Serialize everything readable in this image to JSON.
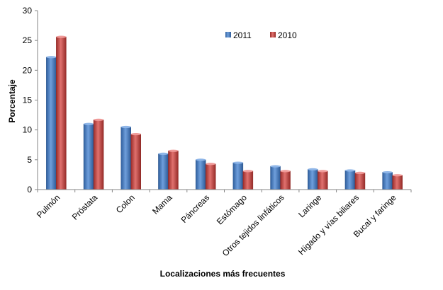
{
  "chart_data": {
    "type": "bar",
    "title": "",
    "xlabel": "Localizaciones  más frecuentes",
    "ylabel": "Porcentaje",
    "ylim": [
      0,
      30
    ],
    "yticks": [
      0,
      5,
      10,
      15,
      20,
      25,
      30
    ],
    "grid": false,
    "legend_position": "top-right",
    "categories": [
      "Pulmón",
      "Próstata",
      "Colon",
      "Mama",
      "Páncreas",
      "Estómago",
      "Otros tejidos linfáticos",
      "Laringe",
      "Hígado y vías biliares",
      "Bucal y faringe"
    ],
    "series": [
      {
        "name": "2011",
        "color": "#4a7ebb",
        "values": [
          22.2,
          11.0,
          10.5,
          6.0,
          5.0,
          4.5,
          3.9,
          3.4,
          3.2,
          2.9
        ]
      },
      {
        "name": "2010",
        "color": "#c0504d",
        "values": [
          25.6,
          11.7,
          9.3,
          6.5,
          4.3,
          3.1,
          3.1,
          3.1,
          2.8,
          2.4
        ]
      }
    ]
  }
}
